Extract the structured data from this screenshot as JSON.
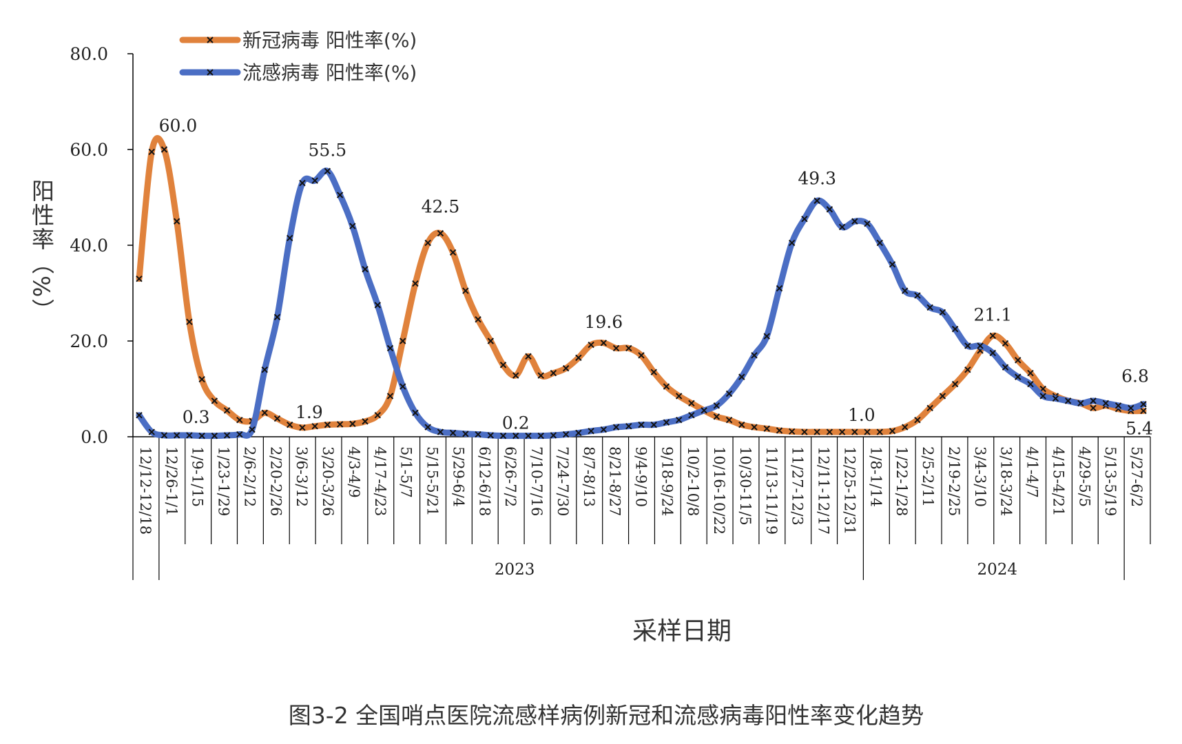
{
  "figure_caption": "图3-2 全国哨点医院流感样病例新冠和流感病毒阳性率变化趋势",
  "colors": {
    "covid": "#E0823C",
    "flu": "#4B6EC4",
    "axis": "#000000",
    "text": "#222222"
  },
  "chart_data": {
    "type": "line",
    "xlabel": "采样日期",
    "ylabel": "阳性率（%）",
    "ylim": [
      0,
      80
    ],
    "yticks": [
      "0.0",
      "20.0",
      "40.0",
      "60.0",
      "80.0"
    ],
    "grid": false,
    "legend_position": "top-left",
    "x_labels": [
      "12/12-12/18",
      "12/26-1/1",
      "1/9-1/15",
      "1/23-1/29",
      "2/6-2/12",
      "2/20-2/26",
      "3/6-3/12",
      "3/20-3/26",
      "4/3-4/9",
      "4/17-4/23",
      "5/1-5/7",
      "5/15-5/21",
      "5/29-6/4",
      "6/12-6/18",
      "6/26-7/2",
      "7/10-7/16",
      "7/24-7/30",
      "8/7-8/13",
      "8/21-8/27",
      "9/4-9/10",
      "9/18-9/24",
      "10/2-10/8",
      "10/16-10/22",
      "10/30-11/5",
      "11/13-11/19",
      "11/27-12/3",
      "12/11-12/17",
      "12/25-12/31",
      "1/8-1/14",
      "1/22-1/28",
      "2/5-2/11",
      "2/19-2/25",
      "3/4-3/10",
      "3/18-3/24",
      "4/1-4/7",
      "4/15-4/21",
      "4/29-5/5",
      "5/13-5/19",
      "5/27-6/2"
    ],
    "year_groups": [
      {
        "label": "",
        "start": 0,
        "end": 1
      },
      {
        "label": "2023",
        "start": 1,
        "end": 28
      },
      {
        "label": "2024",
        "start": 28,
        "end": 38
      }
    ],
    "series": [
      {
        "name": "新冠病毒 阳性率(%)",
        "color": "#E0823C",
        "values": [
          33.0,
          59.5,
          60.0,
          45.0,
          24.0,
          12.0,
          7.5,
          5.5,
          3.5,
          3.3,
          5.0,
          3.8,
          2.5,
          1.9,
          2.2,
          2.5,
          2.6,
          2.7,
          3.2,
          4.5,
          8.5,
          20.0,
          32.0,
          40.5,
          42.5,
          38.5,
          30.5,
          24.5,
          20.0,
          15.0,
          12.8,
          16.8,
          12.8,
          13.3,
          14.3,
          16.5,
          19.2,
          19.6,
          18.5,
          18.5,
          17.0,
          13.5,
          10.5,
          8.5,
          7.0,
          5.5,
          4.2,
          3.5,
          2.5,
          2.0,
          1.7,
          1.3,
          1.1,
          1.0,
          1.0,
          1.0,
          1.0,
          1.0,
          1.0,
          1.0,
          1.2,
          2.0,
          3.5,
          6.0,
          8.5,
          11.0,
          14.0,
          18.0,
          21.1,
          19.5,
          16.0,
          13.3,
          10.0,
          8.5,
          7.5,
          7.0,
          6.0,
          6.5,
          5.8,
          5.4,
          5.4
        ]
      },
      {
        "name": "流感病毒 阳性率(%)",
        "color": "#4B6EC4",
        "values": [
          4.5,
          1.0,
          0.3,
          0.3,
          0.3,
          0.2,
          0.2,
          0.3,
          0.5,
          1.5,
          14.0,
          25.0,
          41.5,
          53.0,
          53.5,
          55.5,
          50.5,
          44.0,
          35.0,
          27.5,
          18.5,
          10.5,
          5.0,
          2.0,
          1.0,
          0.8,
          0.6,
          0.5,
          0.3,
          0.2,
          0.2,
          0.2,
          0.2,
          0.3,
          0.5,
          0.8,
          1.2,
          1.5,
          2.0,
          2.2,
          2.5,
          2.5,
          3.0,
          3.5,
          4.5,
          5.5,
          6.5,
          9.0,
          12.5,
          17.0,
          21.0,
          31.0,
          40.5,
          45.5,
          49.3,
          47.5,
          43.8,
          45.0,
          44.5,
          40.5,
          36.0,
          30.5,
          29.5,
          27.0,
          26.0,
          22.5,
          19.0,
          19.0,
          17.5,
          14.5,
          12.5,
          11.0,
          8.5,
          8.0,
          7.5,
          7.0,
          7.5,
          7.0,
          6.5,
          6.0,
          6.8
        ]
      }
    ],
    "annotations": [
      {
        "text": "60.0",
        "series": 0,
        "index": 2
      },
      {
        "text": "55.5",
        "series": 1,
        "index": 15
      },
      {
        "text": "42.5",
        "series": 0,
        "index": 24
      },
      {
        "text": "19.6",
        "series": 0,
        "index": 37
      },
      {
        "text": "49.3",
        "series": 1,
        "index": 54
      },
      {
        "text": "21.1",
        "series": 0,
        "index": 68
      },
      {
        "text": "0.3",
        "series": 1,
        "index": 3
      },
      {
        "text": "1.9",
        "series": 0,
        "index": 13
      },
      {
        "text": "0.2",
        "series": 1,
        "index": 30
      },
      {
        "text": "1.0",
        "series": 0,
        "index": 57
      },
      {
        "text": "6.8",
        "series": 1,
        "index": 80
      },
      {
        "text": "5.4",
        "series": 0,
        "index": 80
      }
    ]
  }
}
